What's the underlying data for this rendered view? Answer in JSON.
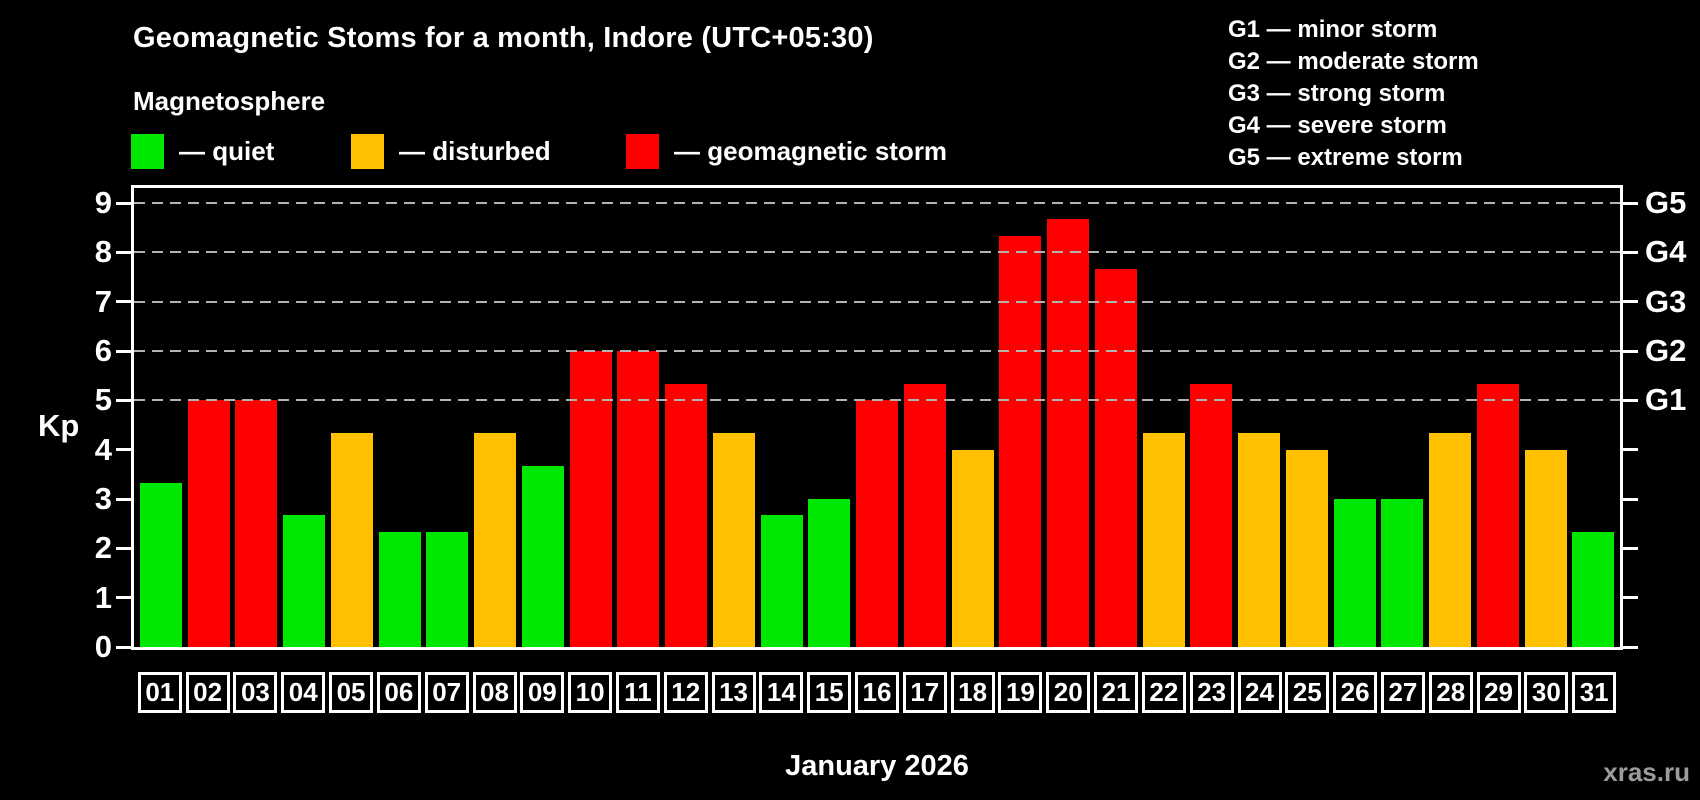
{
  "title": "Geomagnetic Stoms for a month, Indore (UTC+05:30)",
  "subtitle": "Magnetosphere",
  "bar_legend": [
    {
      "status": "quiet",
      "label": "— quiet"
    },
    {
      "status": "disturbed",
      "label": "— disturbed"
    },
    {
      "status": "storm",
      "label": "— geomagnetic storm"
    }
  ],
  "g_legend": [
    "G1 — minor storm",
    "G2 — moderate storm",
    "G3 — strong storm",
    "G4 — severe storm",
    "G5 — extreme storm"
  ],
  "colors": {
    "quiet": "#00e800",
    "disturbed": "#ffc000",
    "storm": "#ff0000",
    "grid": "#b3b3b3",
    "axis": "#ffffff",
    "background": "#000000",
    "watermark": "#9c9c9c"
  },
  "axis": {
    "kp_label": "Kp",
    "left_ticks": [
      0,
      1,
      2,
      3,
      4,
      5,
      6,
      7,
      8,
      9
    ],
    "right_g_labels": [
      {
        "kp": 5,
        "label": "G1"
      },
      {
        "kp": 6,
        "label": "G2"
      },
      {
        "kp": 7,
        "label": "G3"
      },
      {
        "kp": 8,
        "label": "G4"
      },
      {
        "kp": 9,
        "label": "G5"
      }
    ]
  },
  "footer": {
    "xlabel": "January 2026",
    "watermark": "xras.ru"
  },
  "chart_data": {
    "type": "bar",
    "title": "Geomagnetic Stoms for a month, Indore (UTC+05:30)",
    "xlabel": "January 2026",
    "ylabel": "Kp",
    "ylim": [
      0,
      9
    ],
    "grid_levels": [
      5,
      6,
      7,
      8,
      9
    ],
    "grid_style": "dashed",
    "legend_position": "top",
    "categories": [
      "01",
      "02",
      "03",
      "04",
      "05",
      "06",
      "07",
      "08",
      "09",
      "10",
      "11",
      "12",
      "13",
      "14",
      "15",
      "16",
      "17",
      "18",
      "19",
      "20",
      "21",
      "22",
      "23",
      "24",
      "25",
      "26",
      "27",
      "28",
      "29",
      "30",
      "31"
    ],
    "values": [
      3.33,
      5,
      5,
      2.67,
      4.33,
      2.33,
      2.33,
      4.33,
      3.67,
      6,
      6,
      5.33,
      4.33,
      2.67,
      3,
      5,
      5.33,
      4,
      8.33,
      8.67,
      7.67,
      4.33,
      5.33,
      4.33,
      4,
      3,
      3,
      4.33,
      5.33,
      4,
      2.33
    ],
    "status": [
      "quiet",
      "storm",
      "storm",
      "quiet",
      "disturbed",
      "quiet",
      "quiet",
      "disturbed",
      "quiet",
      "storm",
      "storm",
      "storm",
      "disturbed",
      "quiet",
      "quiet",
      "storm",
      "storm",
      "disturbed",
      "storm",
      "storm",
      "storm",
      "disturbed",
      "storm",
      "disturbed",
      "disturbed",
      "quiet",
      "quiet",
      "disturbed",
      "storm",
      "disturbed",
      "quiet"
    ]
  }
}
